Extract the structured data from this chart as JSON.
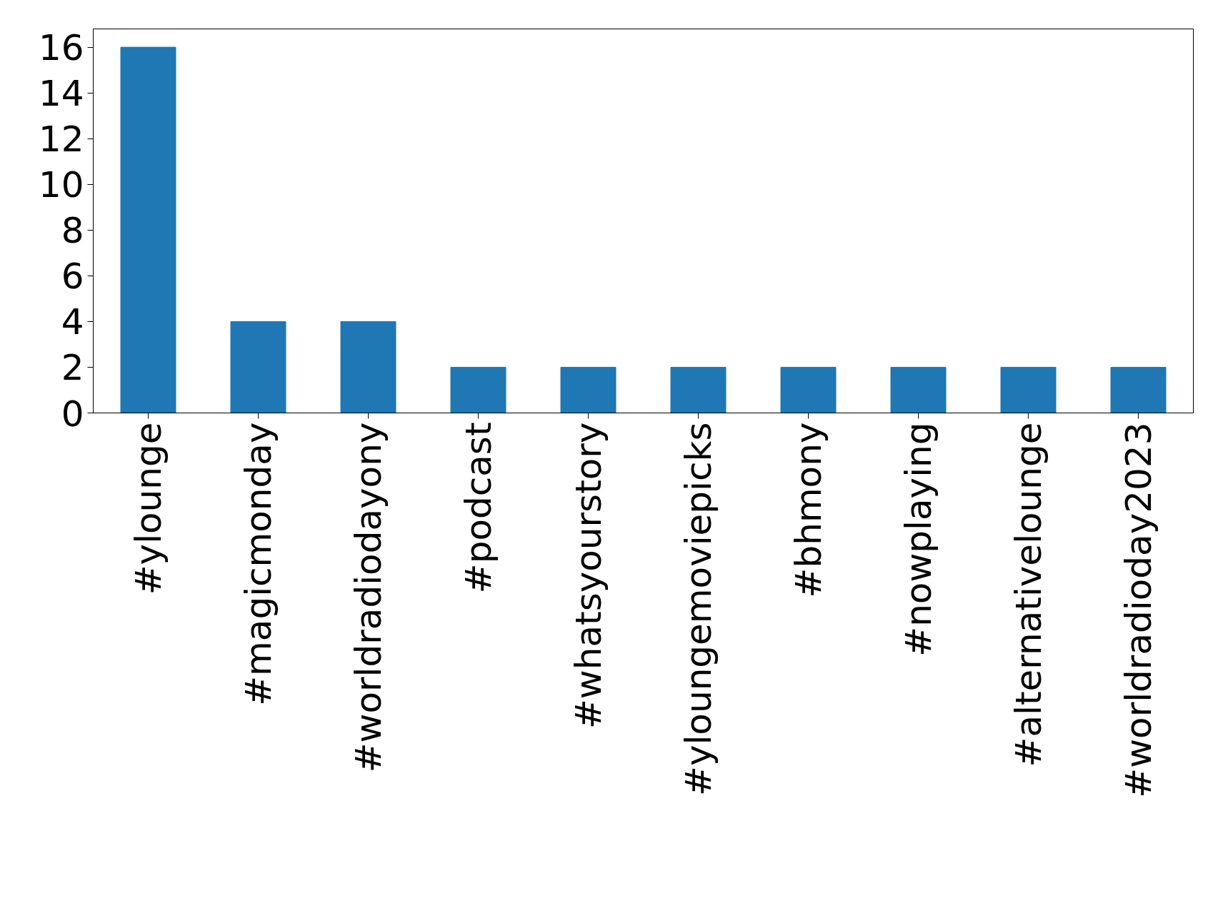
{
  "chart_data": {
    "type": "bar",
    "categories": [
      "#ylounge",
      "#magicmonday",
      "#worldradiodayony",
      "#podcast",
      "#whatsyourstory",
      "#yloungemoviepicks",
      "#bhmony",
      "#nowplaying",
      "#alternativelounge",
      "#worldradioday2023"
    ],
    "values": [
      16,
      4,
      4,
      2,
      2,
      2,
      2,
      2,
      2,
      2
    ],
    "color": "#1f77b4",
    "ylim": [
      0,
      16.8
    ],
    "yticks": [
      0,
      2,
      4,
      6,
      8,
      10,
      12,
      14,
      16
    ],
    "grid": false
  }
}
